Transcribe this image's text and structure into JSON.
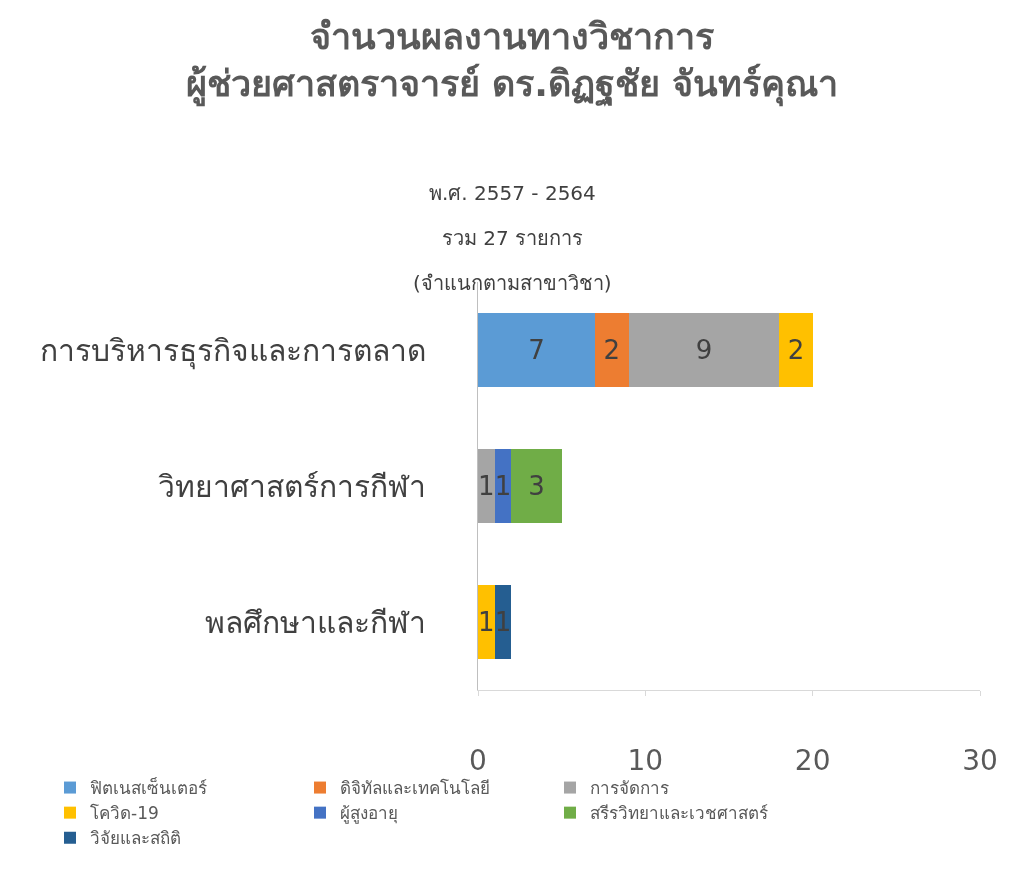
{
  "chart_data": {
    "type": "bar",
    "orientation": "horizontal",
    "stacked": true,
    "title": "จำนวนผลงานทางวิชาการ\nผู้ช่วยศาสตราจารย์ ดร.ดิฏฐชัย จันทร์คุณา",
    "subtitle": "พ.ศ. 2557 - 2564\nรวม 27 รายการ\n(จำแนกตามสาขาวิชา)",
    "categories": [
      "การบริหารธุรกิจและการตลาด",
      "วิทยาศาสตร์การกีฬา",
      "พลศึกษาและกีฬา"
    ],
    "series": [
      {
        "name": "ฟิตเนสเซ็นเตอร์",
        "color": "#5b9bd5",
        "values": [
          7,
          null,
          null
        ]
      },
      {
        "name": "ดิจิทัลและเทคโนโลยี",
        "color": "#ed7d31",
        "values": [
          2,
          null,
          null
        ]
      },
      {
        "name": "การจัดการ",
        "color": "#a5a5a5",
        "values": [
          9,
          1,
          null
        ]
      },
      {
        "name": "โควิด-19",
        "color": "#ffc000",
        "values": [
          2,
          null,
          1
        ]
      },
      {
        "name": "ผู้สูงอายุ",
        "color": "#4472c4",
        "values": [
          null,
          1,
          null
        ]
      },
      {
        "name": "สรีรวิทยาและเวชศาสตร์",
        "color": "#70ad47",
        "values": [
          null,
          3,
          null
        ]
      },
      {
        "name": "วิจัยและสถิติ",
        "color": "#255e91",
        "values": [
          null,
          null,
          1
        ]
      }
    ],
    "xlim": [
      0,
      30
    ],
    "xticks": [
      0,
      10,
      20,
      30
    ],
    "grid": false,
    "legend": "bottom",
    "data_labels": true
  }
}
